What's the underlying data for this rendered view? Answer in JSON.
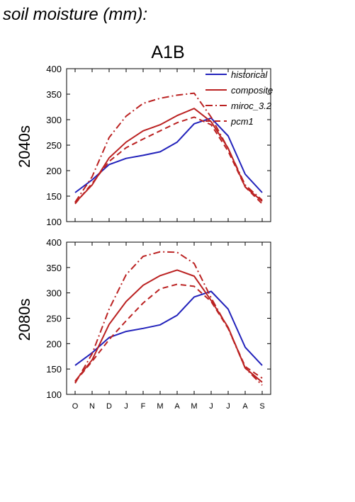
{
  "figure_title": "soil moisture (mm):",
  "scenario": "A1B",
  "colors": {
    "historical": "#2222bb",
    "model": "#bb2222"
  },
  "chart_data": [
    {
      "type": "line",
      "ylabel": "2040s",
      "ylim": [
        100,
        400
      ],
      "yticks": [
        "100",
        "150",
        "200",
        "250",
        "300",
        "350",
        "400"
      ],
      "categories": [
        "O",
        "N",
        "D",
        "J",
        "F",
        "M",
        "A",
        "M",
        "J",
        "J",
        "A",
        "S"
      ],
      "legend_position": "top-right",
      "series": [
        {
          "name": "historical",
          "style": "solid",
          "color": "#2222bb",
          "values": [
            157,
            182,
            212,
            224,
            230,
            237,
            256,
            292,
            303,
            268,
            193,
            157
          ]
        },
        {
          "name": "composite",
          "style": "solid",
          "color": "#bb2222",
          "values": [
            137,
            172,
            225,
            256,
            278,
            290,
            308,
            322,
            296,
            244,
            168,
            140
          ]
        },
        {
          "name": "miroc_3.2",
          "style": "dashdot",
          "color": "#bb2222",
          "values": [
            138,
            188,
            265,
            307,
            332,
            342,
            348,
            352,
            305,
            243,
            172,
            142
          ]
        },
        {
          "name": "pcm1",
          "style": "dashed",
          "color": "#bb2222",
          "values": [
            135,
            175,
            218,
            245,
            262,
            278,
            294,
            305,
            290,
            238,
            168,
            135
          ]
        }
      ]
    },
    {
      "type": "line",
      "ylabel": "2080s",
      "ylim": [
        100,
        400
      ],
      "yticks": [
        "100",
        "150",
        "200",
        "250",
        "300",
        "350",
        "400"
      ],
      "categories": [
        "O",
        "N",
        "D",
        "J",
        "F",
        "M",
        "A",
        "M",
        "J",
        "J",
        "A",
        "S"
      ],
      "xticks": [
        "O",
        "N",
        "D",
        "J",
        "F",
        "M",
        "A",
        "M",
        "J",
        "J",
        "A",
        "S"
      ],
      "series": [
        {
          "name": "historical",
          "style": "solid",
          "color": "#2222bb",
          "values": [
            157,
            182,
            212,
            224,
            230,
            237,
            256,
            292,
            303,
            268,
            193,
            157
          ]
        },
        {
          "name": "composite",
          "style": "solid",
          "color": "#bb2222",
          "values": [
            126,
            168,
            238,
            283,
            315,
            334,
            345,
            333,
            285,
            232,
            152,
            124
          ]
        },
        {
          "name": "miroc_3.2",
          "style": "dashdot",
          "color": "#bb2222",
          "values": [
            122,
            180,
            268,
            336,
            372,
            381,
            380,
            358,
            290,
            230,
            152,
            118
          ]
        },
        {
          "name": "pcm1",
          "style": "dashed",
          "color": "#bb2222",
          "values": [
            125,
            165,
            208,
            245,
            280,
            308,
            317,
            313,
            283,
            230,
            155,
            132
          ]
        }
      ]
    }
  ]
}
